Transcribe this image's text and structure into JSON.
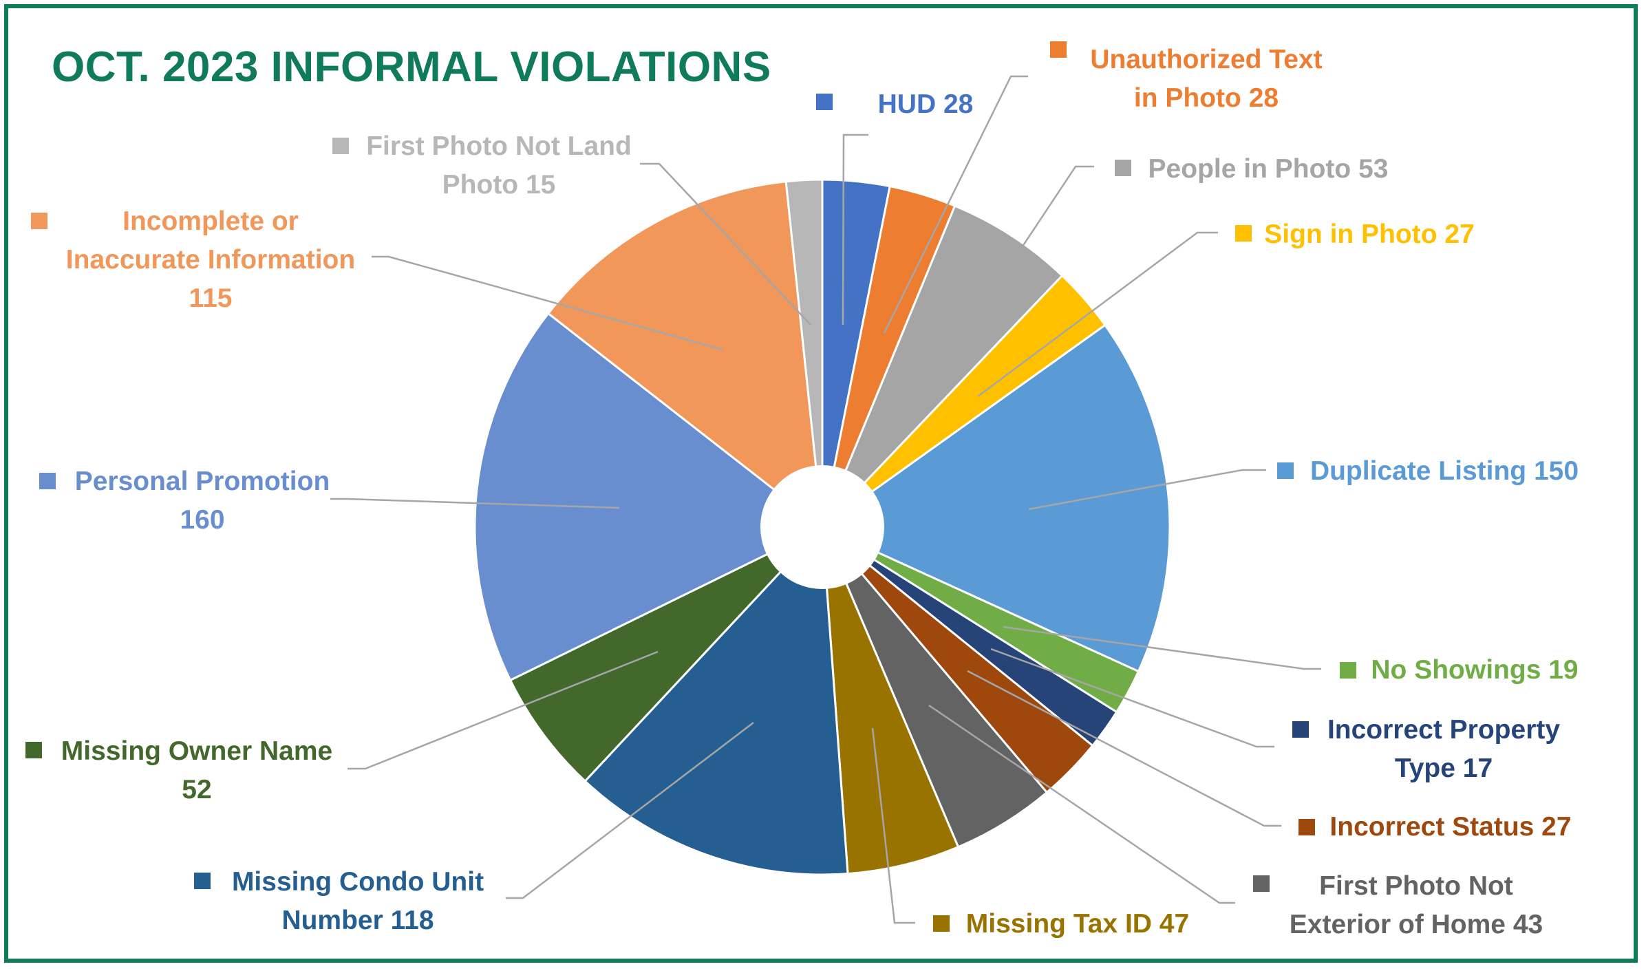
{
  "title": "OCT. 2023 INFORMAL VIOLATIONS",
  "chart_data": {
    "type": "pie",
    "title": "OCT. 2023 INFORMAL VIOLATIONS",
    "donut": true,
    "start_direction": "top",
    "order": "clockwise",
    "legend": "none",
    "slices": [
      {
        "label": "HUD",
        "value": 28,
        "label_lines": [
          "HUD 28"
        ],
        "color": "#4472c4"
      },
      {
        "label": "Unauthorized Text in Photo",
        "value": 28,
        "label_lines": [
          "Unauthorized Text",
          "in Photo 28"
        ],
        "color": "#ed7d31"
      },
      {
        "label": "People in Photo",
        "value": 53,
        "label_lines": [
          "People in Photo 53"
        ],
        "color": "#a5a5a5"
      },
      {
        "label": "Sign in Photo",
        "value": 27,
        "label_lines": [
          "Sign in Photo 27"
        ],
        "color": "#ffc000"
      },
      {
        "label": "Duplicate Listing",
        "value": 150,
        "label_lines": [
          "Duplicate Listing 150"
        ],
        "color": "#5b9bd5"
      },
      {
        "label": "No Showings",
        "value": 19,
        "label_lines": [
          "No Showings 19"
        ],
        "color": "#70ad47"
      },
      {
        "label": "Incorrect Property Type",
        "value": 17,
        "label_lines": [
          "Incorrect Property",
          "Type 17"
        ],
        "color": "#264478"
      },
      {
        "label": "Incorrect Status",
        "value": 27,
        "label_lines": [
          "Incorrect Status 27"
        ],
        "color": "#9e480e"
      },
      {
        "label": "First Photo Not Exterior of Home",
        "value": 43,
        "label_lines": [
          "First Photo Not",
          "Exterior of Home 43"
        ],
        "color": "#636363"
      },
      {
        "label": "Missing Tax ID",
        "value": 47,
        "label_lines": [
          "Missing Tax ID 47"
        ],
        "color": "#997300"
      },
      {
        "label": "Missing Condo Unit Number",
        "value": 118,
        "label_lines": [
          "Missing Condo Unit",
          "Number 118"
        ],
        "color": "#255e91"
      },
      {
        "label": "Missing Owner Name",
        "value": 52,
        "label_lines": [
          "Missing Owner Name",
          "52"
        ],
        "color": "#43682b"
      },
      {
        "label": "Personal Promotion",
        "value": 160,
        "label_lines": [
          "Personal Promotion",
          "160"
        ],
        "color": "#698ed0"
      },
      {
        "label": "Incomplete or Inaccurate Information",
        "value": 115,
        "label_lines": [
          "Incomplete or",
          "Inaccurate Information",
          "115"
        ],
        "color": "#f1975a"
      },
      {
        "label": "First Photo Not Land Photo",
        "value": 15,
        "label_lines": [
          "First Photo Not Land",
          "Photo 15"
        ],
        "color": "#b7b7b7"
      }
    ]
  }
}
